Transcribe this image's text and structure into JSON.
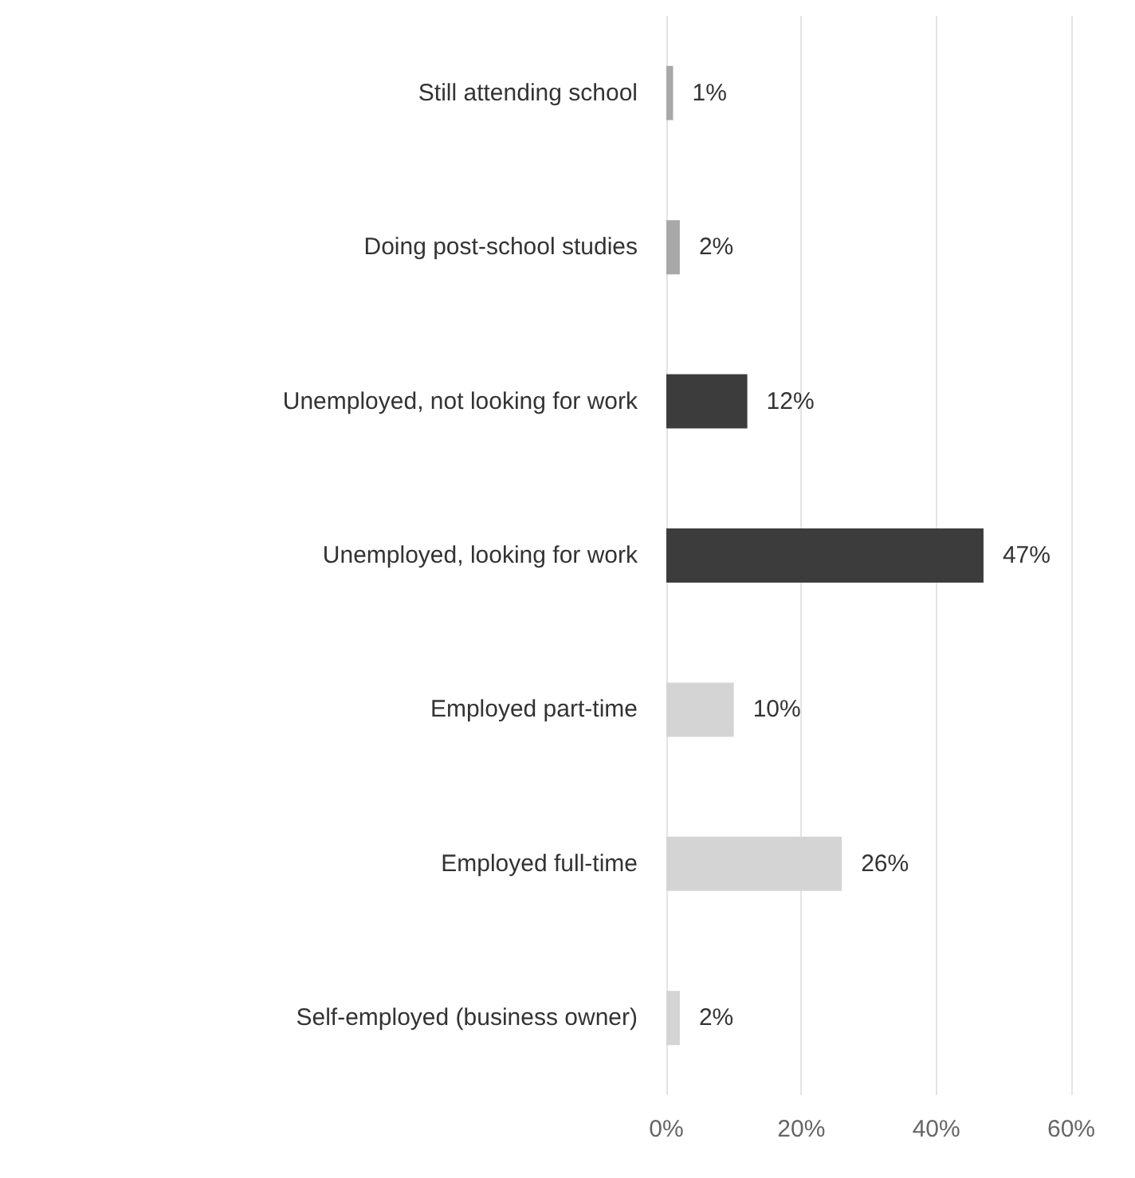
{
  "chart_data": {
    "type": "bar",
    "orientation": "horizontal",
    "categories": [
      "Still attending school",
      "Doing post-school studies",
      "Unemployed, not looking for work",
      "Unemployed, looking for work",
      "Employed part-time",
      "Employed full-time",
      "Self-employed (business owner)"
    ],
    "values": [
      1,
      2,
      12,
      47,
      10,
      26,
      2
    ],
    "value_labels": [
      "1%",
      "2%",
      "12%",
      "47%",
      "10%",
      "26%",
      "2%"
    ],
    "colors": [
      "#a8a8a8",
      "#a8a8a8",
      "#3c3c3c",
      "#3c3c3c",
      "#d4d4d4",
      "#d4d4d4",
      "#d4d4d4"
    ],
    "xlim": [
      0,
      60
    ],
    "xticks": [
      {
        "value": 0,
        "label": "0%"
      },
      {
        "value": 20,
        "label": "20%"
      },
      {
        "value": 40,
        "label": "40%"
      },
      {
        "value": 60,
        "label": "60%"
      }
    ],
    "grid": "x"
  }
}
